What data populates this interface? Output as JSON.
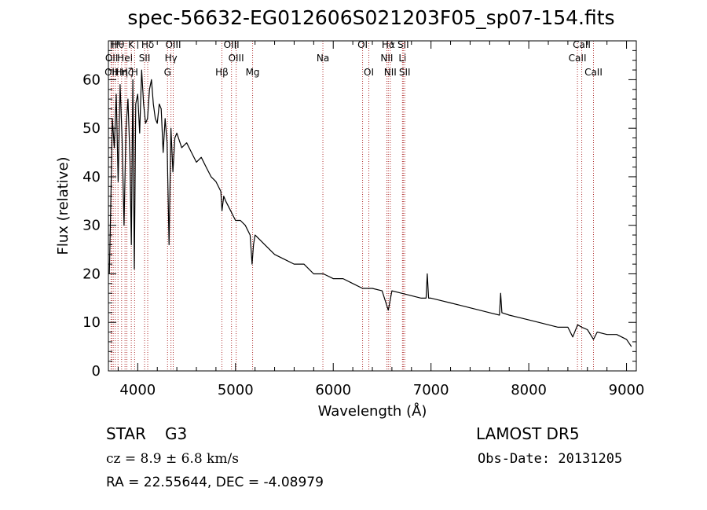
{
  "chart_data": {
    "type": "line",
    "title": "spec-56632-EG012606S021203F05_sp07-154.fits",
    "xlabel": "Wavelength (Å)",
    "ylabel": "Flux (relative)",
    "xlim": [
      3700,
      9100
    ],
    "ylim": [
      0,
      68
    ],
    "xticks": [
      4000,
      5000,
      6000,
      7000,
      8000,
      9000
    ],
    "yticks": [
      0,
      10,
      20,
      30,
      40,
      50,
      60
    ],
    "x_minor_step": 200,
    "y_minor_step": 2,
    "grid": false,
    "line_color": "#000000",
    "marker_color": "#b03030",
    "series": [
      {
        "x": [
          3710,
          3720,
          3740,
          3760,
          3780,
          3800,
          3820,
          3840,
          3860,
          3880,
          3900,
          3920,
          3935,
          3950,
          3965,
          3980,
          4000,
          4020,
          4040,
          4060,
          4080,
          4100,
          4120,
          4140,
          4160,
          4180,
          4200,
          4220,
          4240,
          4260,
          4280,
          4300,
          4320,
          4340,
          4360,
          4380,
          4400,
          4450,
          4500,
          4550,
          4600,
          4650,
          4700,
          4750,
          4800,
          4850,
          4862,
          4880,
          4900,
          4950,
          5000,
          5050,
          5100,
          5150,
          5170,
          5184,
          5200,
          5250,
          5300,
          5400,
          5500,
          5600,
          5700,
          5800,
          5900,
          6000,
          6100,
          6200,
          6300,
          6400,
          6500,
          6563,
          6600,
          6700,
          6800,
          6900,
          6950,
          6962,
          6975,
          7000,
          7100,
          7200,
          7300,
          7400,
          7500,
          7600,
          7700,
          7712,
          7725,
          7800,
          7900,
          8000,
          8100,
          8200,
          8300,
          8400,
          8450,
          8500,
          8542,
          8600,
          8662,
          8700,
          8800,
          8900,
          9000,
          9050
        ],
        "y": [
          20,
          30,
          52,
          46,
          57,
          39,
          59,
          48,
          30,
          50,
          56,
          44,
          26,
          60,
          21,
          55,
          57,
          49,
          62,
          55,
          51,
          52,
          58,
          60,
          55,
          52,
          51,
          55,
          54,
          45,
          52,
          47,
          26,
          50,
          41,
          48,
          49,
          46,
          47,
          45,
          43,
          44,
          42,
          40,
          39,
          37,
          33,
          36,
          35,
          33,
          31,
          31,
          30,
          28,
          22,
          26,
          28,
          27,
          26,
          24,
          23,
          22,
          22,
          20,
          20,
          19,
          19,
          18,
          17,
          17,
          16.5,
          12.5,
          16.5,
          16,
          15.5,
          15,
          15,
          20,
          15,
          15,
          14.5,
          14,
          13.5,
          13,
          12.5,
          12,
          11.5,
          16,
          12,
          11.5,
          11,
          10.5,
          10,
          9.5,
          9,
          9,
          7,
          9.5,
          9,
          8.5,
          6.5,
          8,
          7.5,
          7.5,
          6.5,
          5
        ]
      }
    ],
    "line_markers": [
      {
        "w": 3727,
        "label": "OII",
        "row": 3
      },
      {
        "w": 3733,
        "label": "OII",
        "row": 2
      },
      {
        "w": 3750,
        "label": "H",
        "row": 1
      },
      {
        "w": 3770,
        "label": "H",
        "row": 3
      },
      {
        "w": 3798,
        "label": "Hθ",
        "row": 1
      },
      {
        "w": 3835,
        "label": "Hη",
        "row": 3
      },
      {
        "w": 3870,
        "label": "HeI",
        "row": 2
      },
      {
        "w": 3889,
        "label": "Hζ",
        "row": 3
      },
      {
        "w": 3934,
        "label": "K",
        "row": 1
      },
      {
        "w": 3968,
        "label": "H",
        "row": 3
      },
      {
        "w": 4070,
        "label": "SII",
        "row": 2
      },
      {
        "w": 4102,
        "label": "Hδ",
        "row": 1
      },
      {
        "w": 4305,
        "label": "G",
        "row": 3
      },
      {
        "w": 4340,
        "label": "Hγ",
        "row": 2
      },
      {
        "w": 4363,
        "label": "OIII",
        "row": 1
      },
      {
        "w": 4861,
        "label": "Hβ",
        "row": 3
      },
      {
        "w": 4959,
        "label": "OIII",
        "row": 1
      },
      {
        "w": 5007,
        "label": "OIII",
        "row": 2
      },
      {
        "w": 5175,
        "label": "Mg",
        "row": 3
      },
      {
        "w": 5894,
        "label": "Na",
        "row": 2
      },
      {
        "w": 6300,
        "label": "OI",
        "row": 1
      },
      {
        "w": 6364,
        "label": "OI",
        "row": 3
      },
      {
        "w": 6548,
        "label": "NII",
        "row": 2
      },
      {
        "w": 6563,
        "label": "Hα",
        "row": 1
      },
      {
        "w": 6583,
        "label": "NII",
        "row": 3
      },
      {
        "w": 6708,
        "label": "Li",
        "row": 2
      },
      {
        "w": 6716,
        "label": "SII",
        "row": 1
      },
      {
        "w": 6731,
        "label": "SII",
        "row": 3
      },
      {
        "w": 8498,
        "label": "CaII",
        "row": 2
      },
      {
        "w": 8542,
        "label": "CaII",
        "row": 1
      },
      {
        "w": 8662,
        "label": "CaII",
        "row": 3
      }
    ]
  },
  "info": {
    "object_class": "STAR",
    "subclass": "G3",
    "cz": "cz = 8.9 ± 6.8 km/s",
    "coords": "RA =  22.55644, DEC =  -4.08979",
    "survey": "LAMOST DR5",
    "obs_date": "Obs-Date: 20131205"
  }
}
